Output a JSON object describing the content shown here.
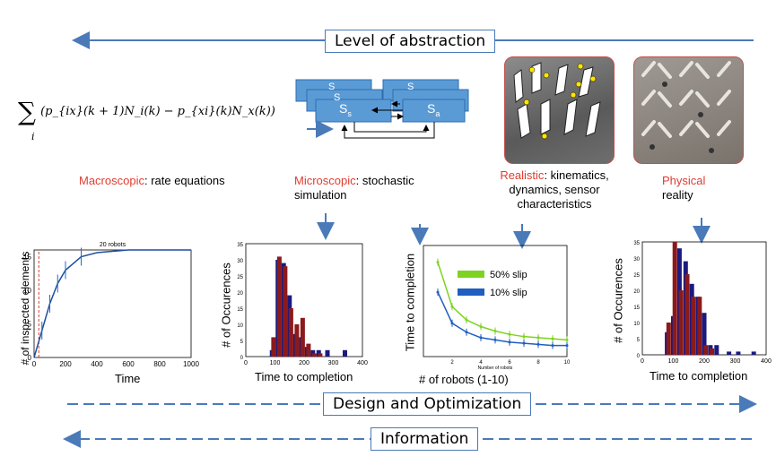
{
  "banners": {
    "level": "Level of abstraction",
    "design": "Design and Optimization",
    "information": "Information"
  },
  "formula": {
    "sum": "∑",
    "sub": "i",
    "body": "(p_{ix}(k + 1)N_i(k) − p_{xi}(k)N_x(k))"
  },
  "state_diagram": {
    "boxes": [
      "S",
      "S",
      "S",
      "S",
      "S"
    ],
    "subs": [
      "s",
      "a"
    ]
  },
  "levels": [
    {
      "name": "Macroscopic",
      "rest": ": rate equations"
    },
    {
      "name": "Microscopic",
      "rest": ": stochastic simulation"
    },
    {
      "name": "Realistic",
      "rest": ": kinematics, dynamics, sensor characteristics"
    },
    {
      "name": "Physical",
      "rest": "reality"
    }
  ],
  "colors": {
    "accent_red": "#e03c31",
    "arrow_blue": "#4a7ab8",
    "bar_blue": "#1a1a80",
    "bar_red": "#8b1a1a",
    "green": "#7ed321",
    "blue": "#1f5fbf"
  },
  "chart_data": [
    {
      "type": "line",
      "title": "20 robots",
      "xlabel": "Time",
      "ylabel": "# of inspected elements",
      "xlim": [
        0,
        1000
      ],
      "ylim": [
        0,
        16
      ],
      "xticks": [
        "0",
        "200",
        "400",
        "600",
        "800",
        "1000"
      ],
      "yticks": [
        "0",
        "5",
        "10",
        "15"
      ],
      "series": [
        {
          "x": [
            0,
            50,
            100,
            150,
            200,
            300,
            400,
            600,
            800,
            1000
          ],
          "values": [
            0,
            4,
            8,
            11,
            13,
            15,
            15.6,
            16,
            16,
            16
          ]
        }
      ]
    },
    {
      "type": "bar",
      "xlabel": "Time to completion",
      "ylabel": "# of Occurences",
      "xlim": [
        0,
        400
      ],
      "ylim": [
        0,
        35
      ],
      "xticks": [
        "0",
        "100",
        "200",
        "300",
        "400"
      ],
      "yticks": [
        "0",
        "5",
        "10",
        "15",
        "20",
        "25",
        "30",
        "35"
      ],
      "series": [
        {
          "x": [
            90,
            110,
            130,
            150,
            170,
            190,
            210,
            230,
            250,
            280,
            340
          ],
          "values": [
            2,
            30,
            29,
            19,
            7,
            6,
            3,
            2,
            2,
            2,
            2
          ]
        },
        {
          "x": [
            95,
            115,
            135,
            155,
            175,
            195,
            215,
            235,
            255
          ],
          "values": [
            6,
            31,
            28,
            15,
            10,
            12,
            4,
            1,
            1
          ]
        }
      ]
    },
    {
      "type": "line",
      "xlabel": "# of robots (1-10)",
      "ylabel": "Time to completion",
      "subxlabel": "Number of robots",
      "xlim": [
        0,
        10
      ],
      "xticks": [
        "2",
        "4",
        "6",
        "8",
        "10"
      ],
      "series": [
        {
          "name": "50% slip",
          "x": [
            1,
            2,
            3,
            4,
            5,
            6,
            7,
            8,
            9,
            10
          ],
          "values": [
            0.85,
            0.45,
            0.33,
            0.27,
            0.23,
            0.2,
            0.18,
            0.17,
            0.16,
            0.15
          ]
        },
        {
          "name": "10% slip",
          "x": [
            1,
            2,
            3,
            4,
            5,
            6,
            7,
            8,
            9,
            10
          ],
          "values": [
            0.58,
            0.3,
            0.22,
            0.17,
            0.15,
            0.13,
            0.12,
            0.11,
            0.1,
            0.1
          ]
        }
      ]
    },
    {
      "type": "bar",
      "xlabel": "Time to completion",
      "ylabel": "# of Occurences",
      "xlim": [
        0,
        400
      ],
      "ylim": [
        0,
        35
      ],
      "xticks": [
        "0",
        "100",
        "200",
        "300",
        "400"
      ],
      "yticks": [
        "0",
        "5",
        "10",
        "15",
        "20",
        "25",
        "30",
        "35"
      ],
      "series": [
        {
          "x": [
            80,
            100,
            120,
            140,
            160,
            180,
            200,
            220,
            240,
            280,
            310,
            360
          ],
          "values": [
            7,
            12,
            33,
            29,
            22,
            18,
            13,
            3,
            3,
            1,
            1,
            1
          ]
        },
        {
          "x": [
            85,
            105,
            125,
            145,
            165,
            185,
            205,
            225
          ],
          "values": [
            10,
            35,
            20,
            25,
            18,
            18,
            3,
            2
          ]
        }
      ]
    }
  ]
}
